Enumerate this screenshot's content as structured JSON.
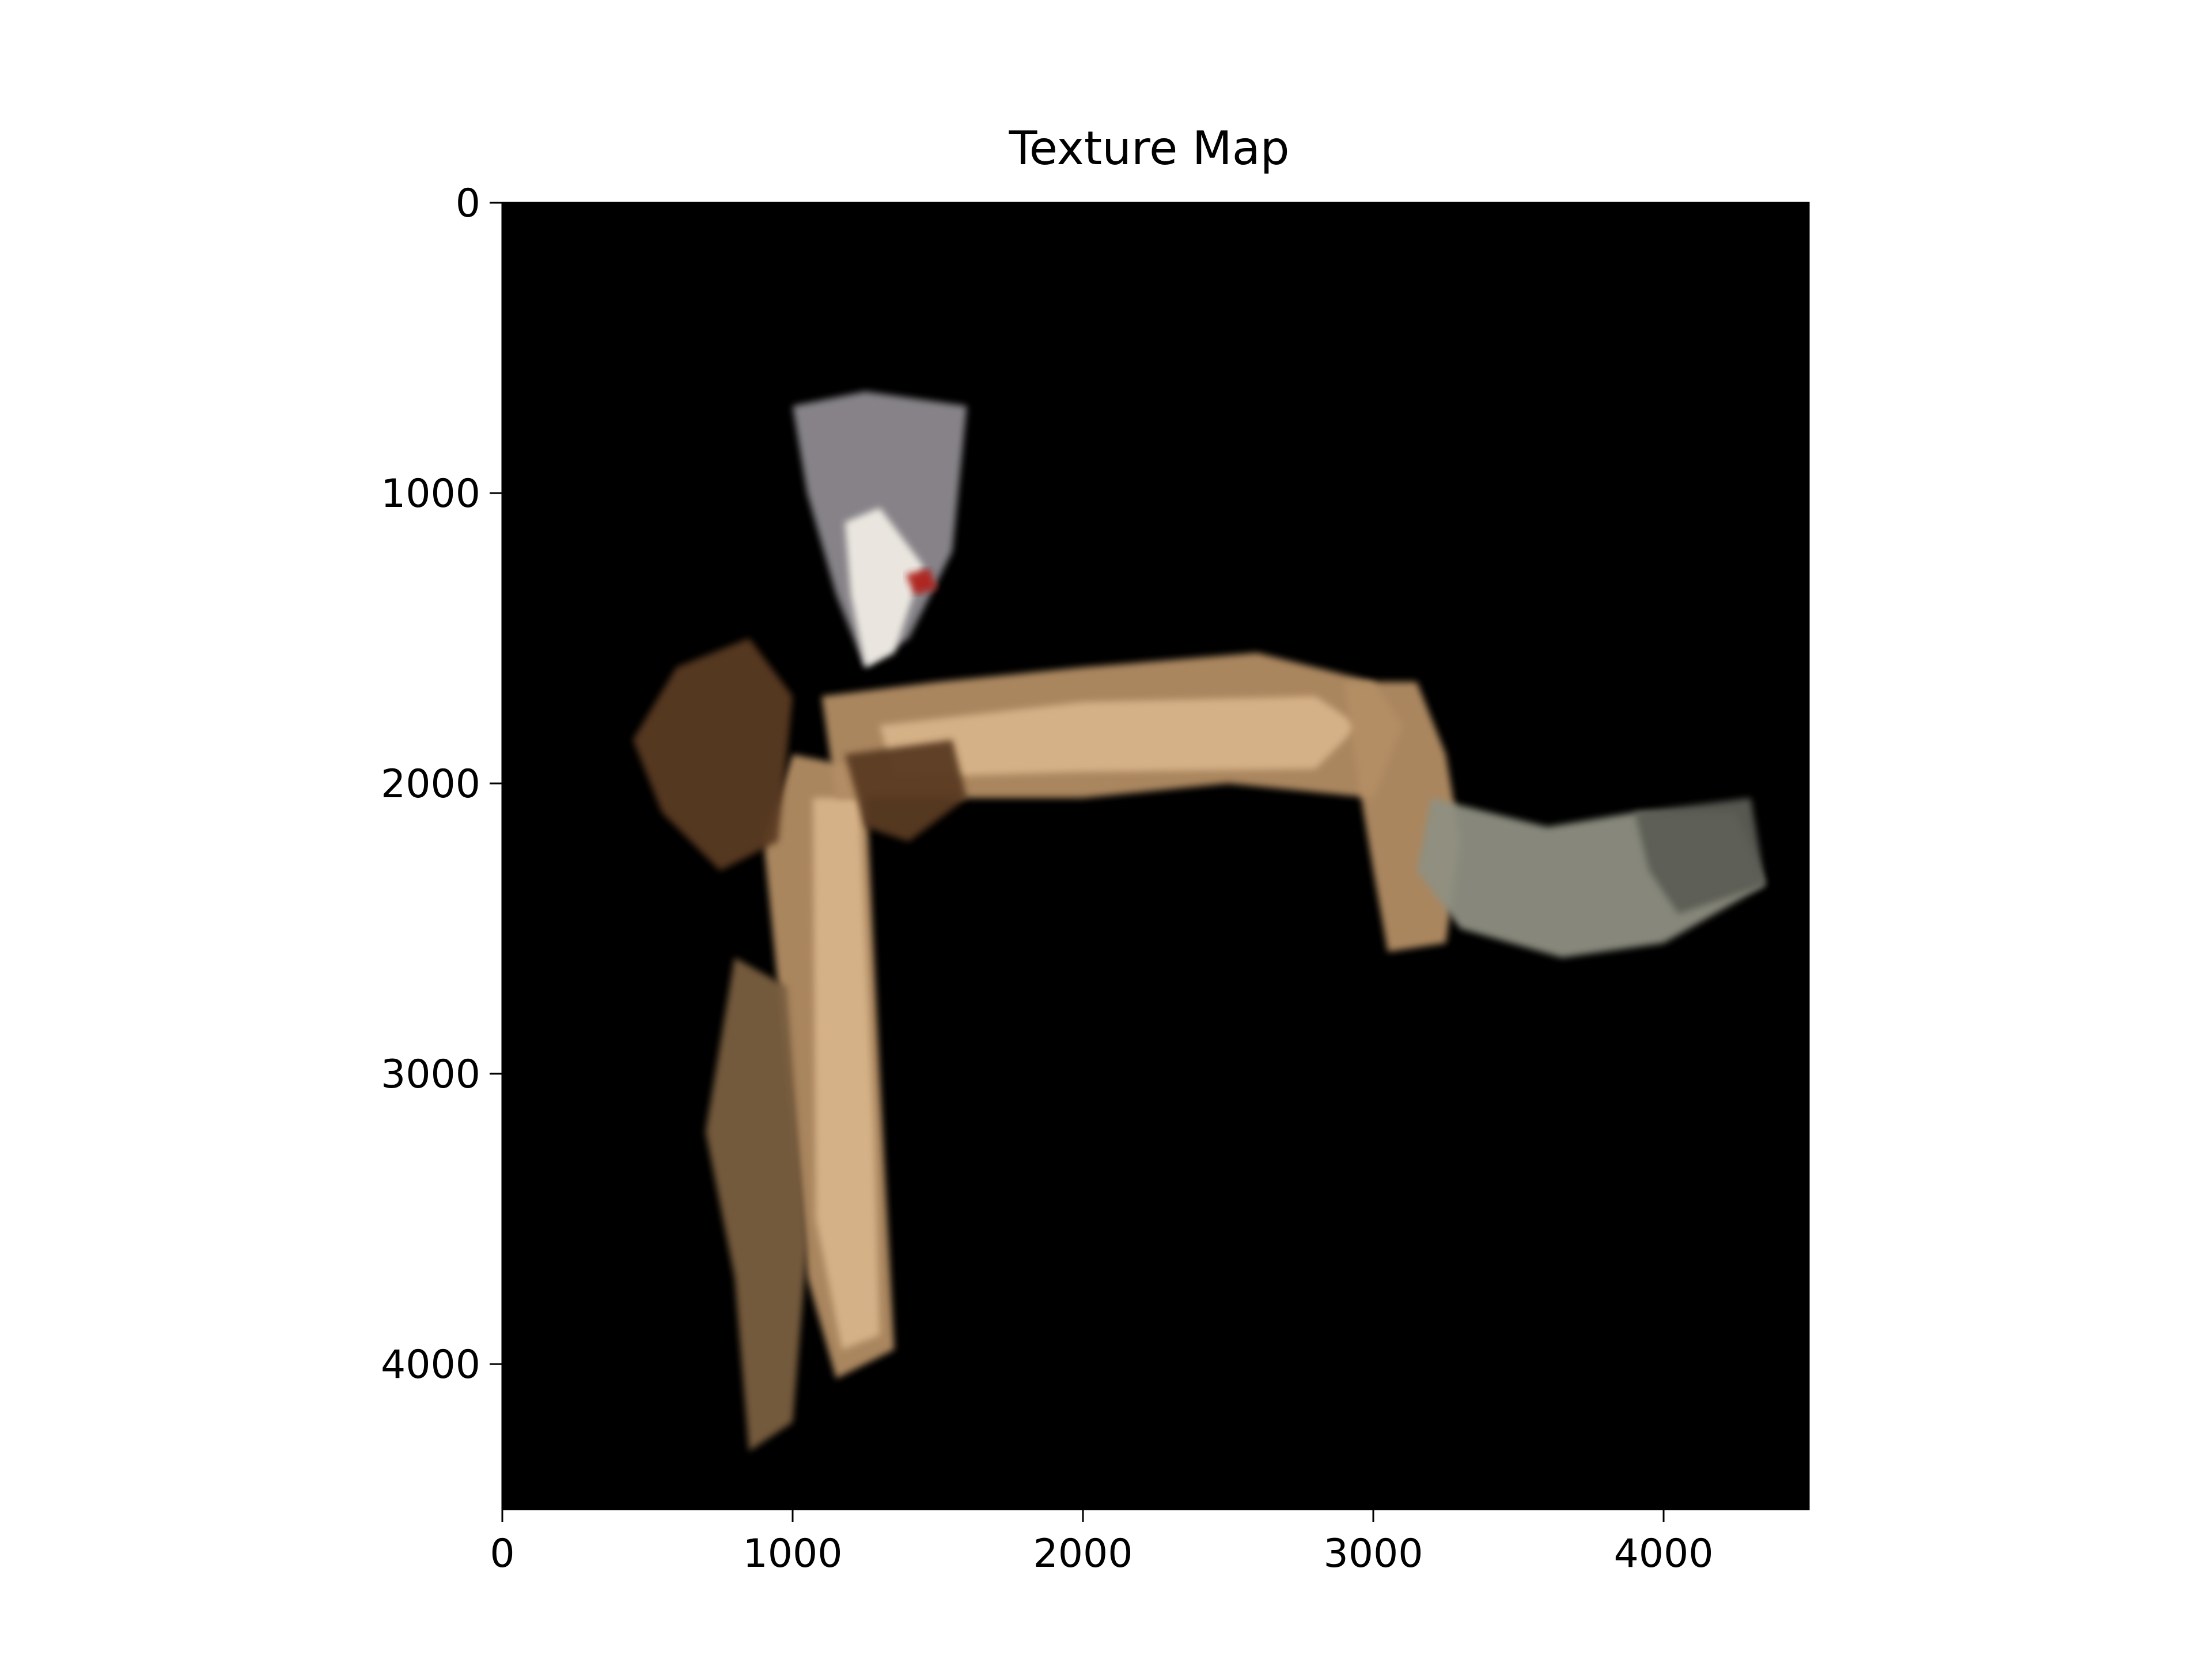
{
  "chart_data": {
    "type": "heatmap",
    "title": "Texture Map",
    "xlabel": "",
    "ylabel": "",
    "xlim": [
      0,
      4500
    ],
    "ylim": [
      4500,
      0
    ],
    "x_ticks": [
      0,
      1000,
      2000,
      3000,
      4000
    ],
    "y_ticks": [
      0,
      1000,
      2000,
      3000,
      4000
    ],
    "x_tick_labels": [
      "0",
      "1000",
      "2000",
      "3000",
      "4000"
    ],
    "y_tick_labels": [
      "0",
      "1000",
      "2000",
      "3000",
      "4000"
    ],
    "grid": false,
    "legend": "none",
    "background_color": "#000000",
    "texture_colors": {
      "floor_light": "#d8b48a",
      "floor_mid": "#b48e65",
      "floor_dark": "#7a5f40",
      "wall_brown": "#5a3a24",
      "accent_red": "#b0201e",
      "gray_region": "#8f9082",
      "gray_dark": "#5c5d55",
      "cluster_gray": "#8e8a90",
      "bright": "#f0ece4"
    },
    "regions": [
      {
        "name": "vertical-corridor",
        "color": "floor_mid",
        "points": [
          [
            1000,
            1900
          ],
          [
            1250,
            1950
          ],
          [
            1300,
            3000
          ],
          [
            1350,
            3950
          ],
          [
            1150,
            4050
          ],
          [
            1050,
            3700
          ],
          [
            980,
            3000
          ],
          [
            900,
            2200
          ]
        ]
      },
      {
        "name": "vertical-corridor-highlight",
        "color": "floor_light",
        "points": [
          [
            1070,
            2050
          ],
          [
            1230,
            2050
          ],
          [
            1280,
            3200
          ],
          [
            1300,
            3900
          ],
          [
            1170,
            3950
          ],
          [
            1080,
            3500
          ]
        ]
      },
      {
        "name": "horizontal-corridor",
        "color": "floor_mid",
        "points": [
          [
            1100,
            1700
          ],
          [
            1500,
            1650
          ],
          [
            2000,
            1600
          ],
          [
            2600,
            1550
          ],
          [
            3000,
            1650
          ],
          [
            3100,
            1800
          ],
          [
            3000,
            2050
          ],
          [
            2500,
            2000
          ],
          [
            2000,
            2050
          ],
          [
            1500,
            2050
          ],
          [
            1150,
            2050
          ]
        ]
      },
      {
        "name": "horizontal-corridor-highlight",
        "color": "floor_light",
        "points": [
          [
            1300,
            1800
          ],
          [
            2000,
            1720
          ],
          [
            2800,
            1700
          ],
          [
            2950,
            1800
          ],
          [
            2800,
            1950
          ],
          [
            2000,
            1960
          ],
          [
            1350,
            1980
          ]
        ]
      },
      {
        "name": "right-bend",
        "color": "floor_mid",
        "points": [
          [
            2900,
            1650
          ],
          [
            3150,
            1650
          ],
          [
            3250,
            1900
          ],
          [
            3300,
            2200
          ],
          [
            3250,
            2550
          ],
          [
            3050,
            2580
          ],
          [
            3000,
            2300
          ],
          [
            2950,
            2000
          ]
        ]
      },
      {
        "name": "gray-extension",
        "color": "gray_region",
        "points": [
          [
            3200,
            2050
          ],
          [
            3600,
            2150
          ],
          [
            3900,
            2100
          ],
          [
            4250,
            2100
          ],
          [
            4350,
            2350
          ],
          [
            4000,
            2550
          ],
          [
            3650,
            2600
          ],
          [
            3300,
            2500
          ],
          [
            3150,
            2300
          ]
        ]
      },
      {
        "name": "gray-extension-dark",
        "color": "gray_dark",
        "points": [
          [
            3900,
            2100
          ],
          [
            4300,
            2050
          ],
          [
            4350,
            2350
          ],
          [
            4050,
            2450
          ],
          [
            3950,
            2300
          ]
        ]
      },
      {
        "name": "upper-cluster",
        "color": "cluster_gray",
        "points": [
          [
            1000,
            700
          ],
          [
            1250,
            650
          ],
          [
            1600,
            700
          ],
          [
            1550,
            1200
          ],
          [
            1400,
            1500
          ],
          [
            1250,
            1600
          ],
          [
            1150,
            1350
          ],
          [
            1050,
            1000
          ]
        ]
      },
      {
        "name": "upper-cluster-bright",
        "color": "bright",
        "points": [
          [
            1180,
            1100
          ],
          [
            1300,
            1050
          ],
          [
            1450,
            1250
          ],
          [
            1350,
            1550
          ],
          [
            1250,
            1600
          ],
          [
            1200,
            1350
          ]
        ]
      },
      {
        "name": "left-smear",
        "color": "wall_brown",
        "points": [
          [
            600,
            1600
          ],
          [
            850,
            1500
          ],
          [
            1000,
            1700
          ],
          [
            950,
            2200
          ],
          [
            750,
            2300
          ],
          [
            550,
            2100
          ],
          [
            450,
            1850
          ]
        ]
      },
      {
        "name": "lower-left-smear",
        "color": "floor_dark",
        "points": [
          [
            800,
            2600
          ],
          [
            980,
            2700
          ],
          [
            1050,
            3600
          ],
          [
            1000,
            4200
          ],
          [
            850,
            4300
          ],
          [
            800,
            3700
          ],
          [
            700,
            3200
          ]
        ]
      },
      {
        "name": "junction-dark",
        "color": "wall_brown",
        "points": [
          [
            1180,
            1900
          ],
          [
            1550,
            1850
          ],
          [
            1600,
            2050
          ],
          [
            1400,
            2200
          ],
          [
            1250,
            2150
          ]
        ]
      },
      {
        "name": "red-mark",
        "color": "accent_red",
        "points": [
          [
            1390,
            1280
          ],
          [
            1470,
            1260
          ],
          [
            1500,
            1330
          ],
          [
            1420,
            1350
          ]
        ]
      }
    ]
  }
}
